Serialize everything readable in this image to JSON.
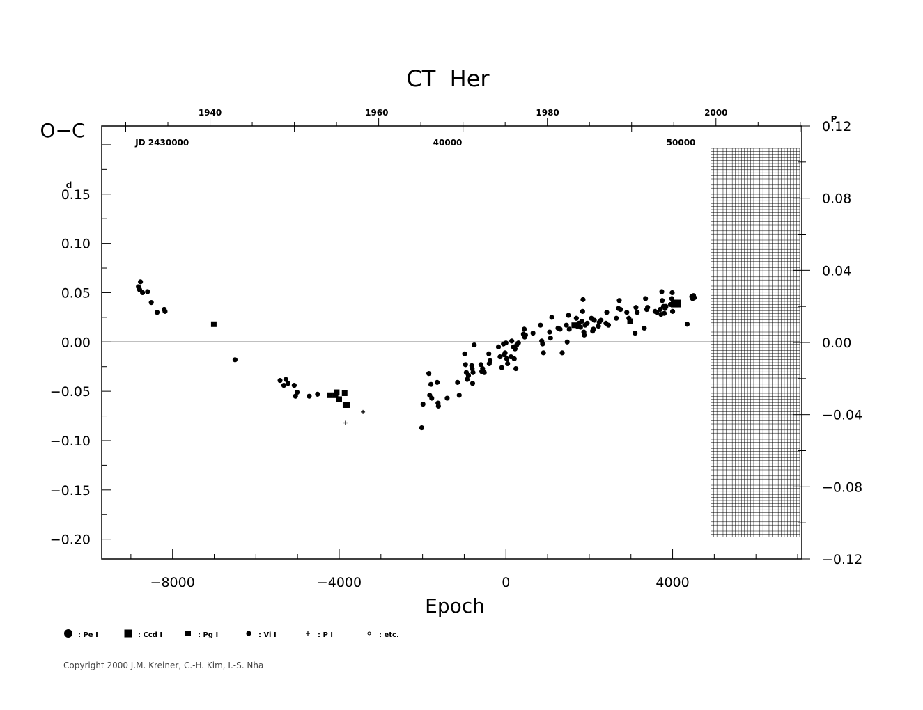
{
  "chart_data": {
    "type": "scatter",
    "title": "CT  Her",
    "xlabel": "Epoch",
    "ylabel": "O−C",
    "xlim": [
      -9700,
      7100
    ],
    "ylim": [
      -0.22,
      0.219
    ],
    "y2lim": [
      -0.12,
      0.12
    ],
    "x_ticks": [
      -8000,
      -4000,
      0,
      4000
    ],
    "x_tick_labels": [
      "−8000",
      "−4000",
      "0",
      "4000"
    ],
    "y_ticks": [
      0.15,
      0.1,
      0.05,
      0.0,
      -0.05,
      -0.1,
      -0.15,
      -0.2
    ],
    "y_tick_labels": [
      "0.15",
      "0.10",
      "0.05",
      "0.00",
      "−0.05",
      "−0.10",
      "−0.15",
      "−0.20"
    ],
    "y_unit_superscript": "d",
    "y2_ticks": [
      0.12,
      0.08,
      0.04,
      0.0,
      -0.04,
      -0.08,
      -0.12
    ],
    "y2_tick_labels": [
      "0.12",
      "0.08",
      "0.04",
      "0.00",
      "−0.04",
      "−0.08",
      "−0.12"
    ],
    "y2_unit_superscript": "P",
    "top_year_ticks": [
      1940,
      1960,
      1980,
      2000
    ],
    "top_year_epochs": [
      -7100,
      -3100,
      1000,
      5040
    ],
    "top_jd_labels": [
      {
        "label": "JD  2430000",
        "epoch": -8250
      },
      {
        "label": "40000",
        "epoch": -1400
      },
      {
        "label": "50000",
        "epoch": 4200
      }
    ],
    "zero_line": true,
    "future_grid_from_epoch": 5050,
    "legend": [
      {
        "symbol": "large-circle",
        "label": ": Pe  I"
      },
      {
        "symbol": "large-square",
        "label": ": Ccd  I"
      },
      {
        "symbol": "small-square",
        "label": ": Pg  I"
      },
      {
        "symbol": "small-circle",
        "label": ": Vi  I"
      },
      {
        "symbol": "plus",
        "label": ": P  I"
      },
      {
        "symbol": "tiny-circle",
        "label": ": etc."
      }
    ],
    "series": [
      {
        "name": ": Vi  I",
        "marker": "small-circle",
        "points": [
          [
            -8820,
            0.056
          ],
          [
            -8790,
            0.053
          ],
          [
            -8770,
            0.061
          ],
          [
            -8720,
            0.05
          ],
          [
            -8600,
            0.051
          ],
          [
            -8510,
            0.04
          ],
          [
            -8370,
            0.03
          ],
          [
            -8200,
            0.033
          ],
          [
            -8180,
            0.031
          ],
          [
            -6500,
            -0.018
          ],
          [
            -5420,
            -0.039
          ],
          [
            -5330,
            -0.044
          ],
          [
            -5280,
            -0.038
          ],
          [
            -5230,
            -0.042
          ],
          [
            -5080,
            -0.044
          ],
          [
            -5050,
            -0.055
          ],
          [
            -5010,
            -0.051
          ],
          [
            -4720,
            -0.055
          ],
          [
            -4520,
            -0.053
          ],
          [
            -2020,
            -0.087
          ],
          [
            -1990,
            -0.063
          ],
          [
            -1850,
            -0.032
          ],
          [
            -1830,
            -0.054
          ],
          [
            -1800,
            -0.043
          ],
          [
            -1780,
            -0.057
          ],
          [
            -1650,
            -0.041
          ],
          [
            -1630,
            -0.062
          ],
          [
            -1620,
            -0.065
          ],
          [
            -1410,
            -0.057
          ],
          [
            -1160,
            -0.041
          ],
          [
            -1120,
            -0.054
          ],
          [
            -990,
            -0.012
          ],
          [
            -970,
            -0.023
          ],
          [
            -950,
            -0.031
          ],
          [
            -930,
            -0.038
          ],
          [
            -900,
            -0.034
          ],
          [
            -820,
            -0.024
          ],
          [
            -810,
            -0.027
          ],
          [
            -800,
            -0.042
          ],
          [
            -790,
            -0.031
          ],
          [
            -760,
            -0.003
          ],
          [
            -600,
            -0.023
          ],
          [
            -580,
            -0.03
          ],
          [
            -560,
            -0.027
          ],
          [
            -520,
            -0.031
          ],
          [
            -410,
            -0.012
          ],
          [
            -400,
            -0.022
          ],
          [
            -380,
            -0.019
          ],
          [
            -180,
            -0.005
          ],
          [
            -140,
            -0.015
          ],
          [
            -100,
            -0.026
          ],
          [
            -60,
            -0.002
          ],
          [
            -40,
            -0.013
          ],
          [
            -20,
            -0.011
          ],
          [
            0,
            -0.001
          ],
          [
            20,
            -0.017
          ],
          [
            40,
            -0.022
          ],
          [
            120,
            -0.015
          ],
          [
            140,
            0.001
          ],
          [
            180,
            -0.005
          ],
          [
            200,
            -0.017
          ],
          [
            220,
            -0.007
          ],
          [
            240,
            -0.027
          ],
          [
            260,
            -0.003
          ],
          [
            300,
            -0.001
          ],
          [
            420,
            0.008
          ],
          [
            440,
            0.013
          ],
          [
            450,
            0.005
          ],
          [
            470,
            0.007
          ],
          [
            650,
            0.009
          ],
          [
            830,
            0.017
          ],
          [
            860,
            0.001
          ],
          [
            880,
            -0.002
          ],
          [
            900,
            -0.011
          ],
          [
            1050,
            0.01
          ],
          [
            1070,
            0.004
          ],
          [
            1100,
            0.025
          ],
          [
            1250,
            0.014
          ],
          [
            1300,
            0.013
          ],
          [
            1350,
            -0.011
          ],
          [
            1450,
            0.017
          ],
          [
            1470,
            0.0
          ],
          [
            1500,
            0.027
          ],
          [
            1520,
            0.013
          ],
          [
            1690,
            0.024
          ],
          [
            1710,
            0.016
          ],
          [
            1750,
            0.019
          ],
          [
            1790,
            0.015
          ],
          [
            1820,
            0.021
          ],
          [
            1840,
            0.031
          ],
          [
            1850,
            0.043
          ],
          [
            1870,
            0.01
          ],
          [
            1880,
            0.007
          ],
          [
            1900,
            0.017
          ],
          [
            1950,
            0.019
          ],
          [
            2050,
            0.024
          ],
          [
            2080,
            0.011
          ],
          [
            2100,
            0.013
          ],
          [
            2120,
            0.022
          ],
          [
            2220,
            0.016
          ],
          [
            2240,
            0.02
          ],
          [
            2280,
            0.022
          ],
          [
            2400,
            0.019
          ],
          [
            2420,
            0.03
          ],
          [
            2460,
            0.017
          ],
          [
            2650,
            0.024
          ],
          [
            2700,
            0.034
          ],
          [
            2720,
            0.042
          ],
          [
            2750,
            0.033
          ],
          [
            2900,
            0.03
          ],
          [
            2950,
            0.024
          ],
          [
            3100,
            0.009
          ],
          [
            3120,
            0.035
          ],
          [
            3150,
            0.03
          ],
          [
            3320,
            0.014
          ],
          [
            3350,
            0.044
          ],
          [
            3380,
            0.033
          ],
          [
            3400,
            0.035
          ],
          [
            3580,
            0.031
          ],
          [
            3620,
            0.03
          ],
          [
            3700,
            0.033
          ],
          [
            3720,
            0.028
          ],
          [
            3740,
            0.051
          ],
          [
            3750,
            0.042
          ],
          [
            3780,
            0.036
          ],
          [
            3800,
            0.029
          ],
          [
            3820,
            0.034
          ],
          [
            3840,
            0.036
          ],
          [
            3950,
            0.038
          ],
          [
            3980,
            0.044
          ],
          [
            3990,
            0.05
          ],
          [
            4000,
            0.031
          ],
          [
            4350,
            0.018
          ],
          [
            4460,
            0.046
          ],
          [
            4480,
            0.044
          ],
          [
            4500,
            0.047
          ],
          [
            4520,
            0.045
          ]
        ]
      },
      {
        "name": ": Pg  I",
        "marker": "small-square",
        "points": [
          [
            -7010,
            0.018
          ],
          [
            -4220,
            -0.054
          ],
          [
            -4090,
            -0.054
          ],
          [
            -4060,
            -0.051
          ],
          [
            -4000,
            -0.058
          ],
          [
            -3870,
            -0.052
          ],
          [
            -3850,
            -0.064
          ],
          [
            -3810,
            -0.064
          ],
          [
            1640,
            0.017
          ],
          [
            2980,
            0.021
          ]
        ]
      },
      {
        "name": ": Ccd  I",
        "marker": "large-square",
        "points": [
          [
            4050,
            0.039
          ],
          [
            4100,
            0.039
          ]
        ]
      },
      {
        "name": ": P  I",
        "marker": "plus",
        "points": [
          [
            -3850,
            -0.082
          ],
          [
            -3430,
            -0.071
          ]
        ]
      }
    ]
  },
  "copyright": "Copyright 2000 J.M. Kreiner, C.-H. Kim, I.-S. Nha"
}
